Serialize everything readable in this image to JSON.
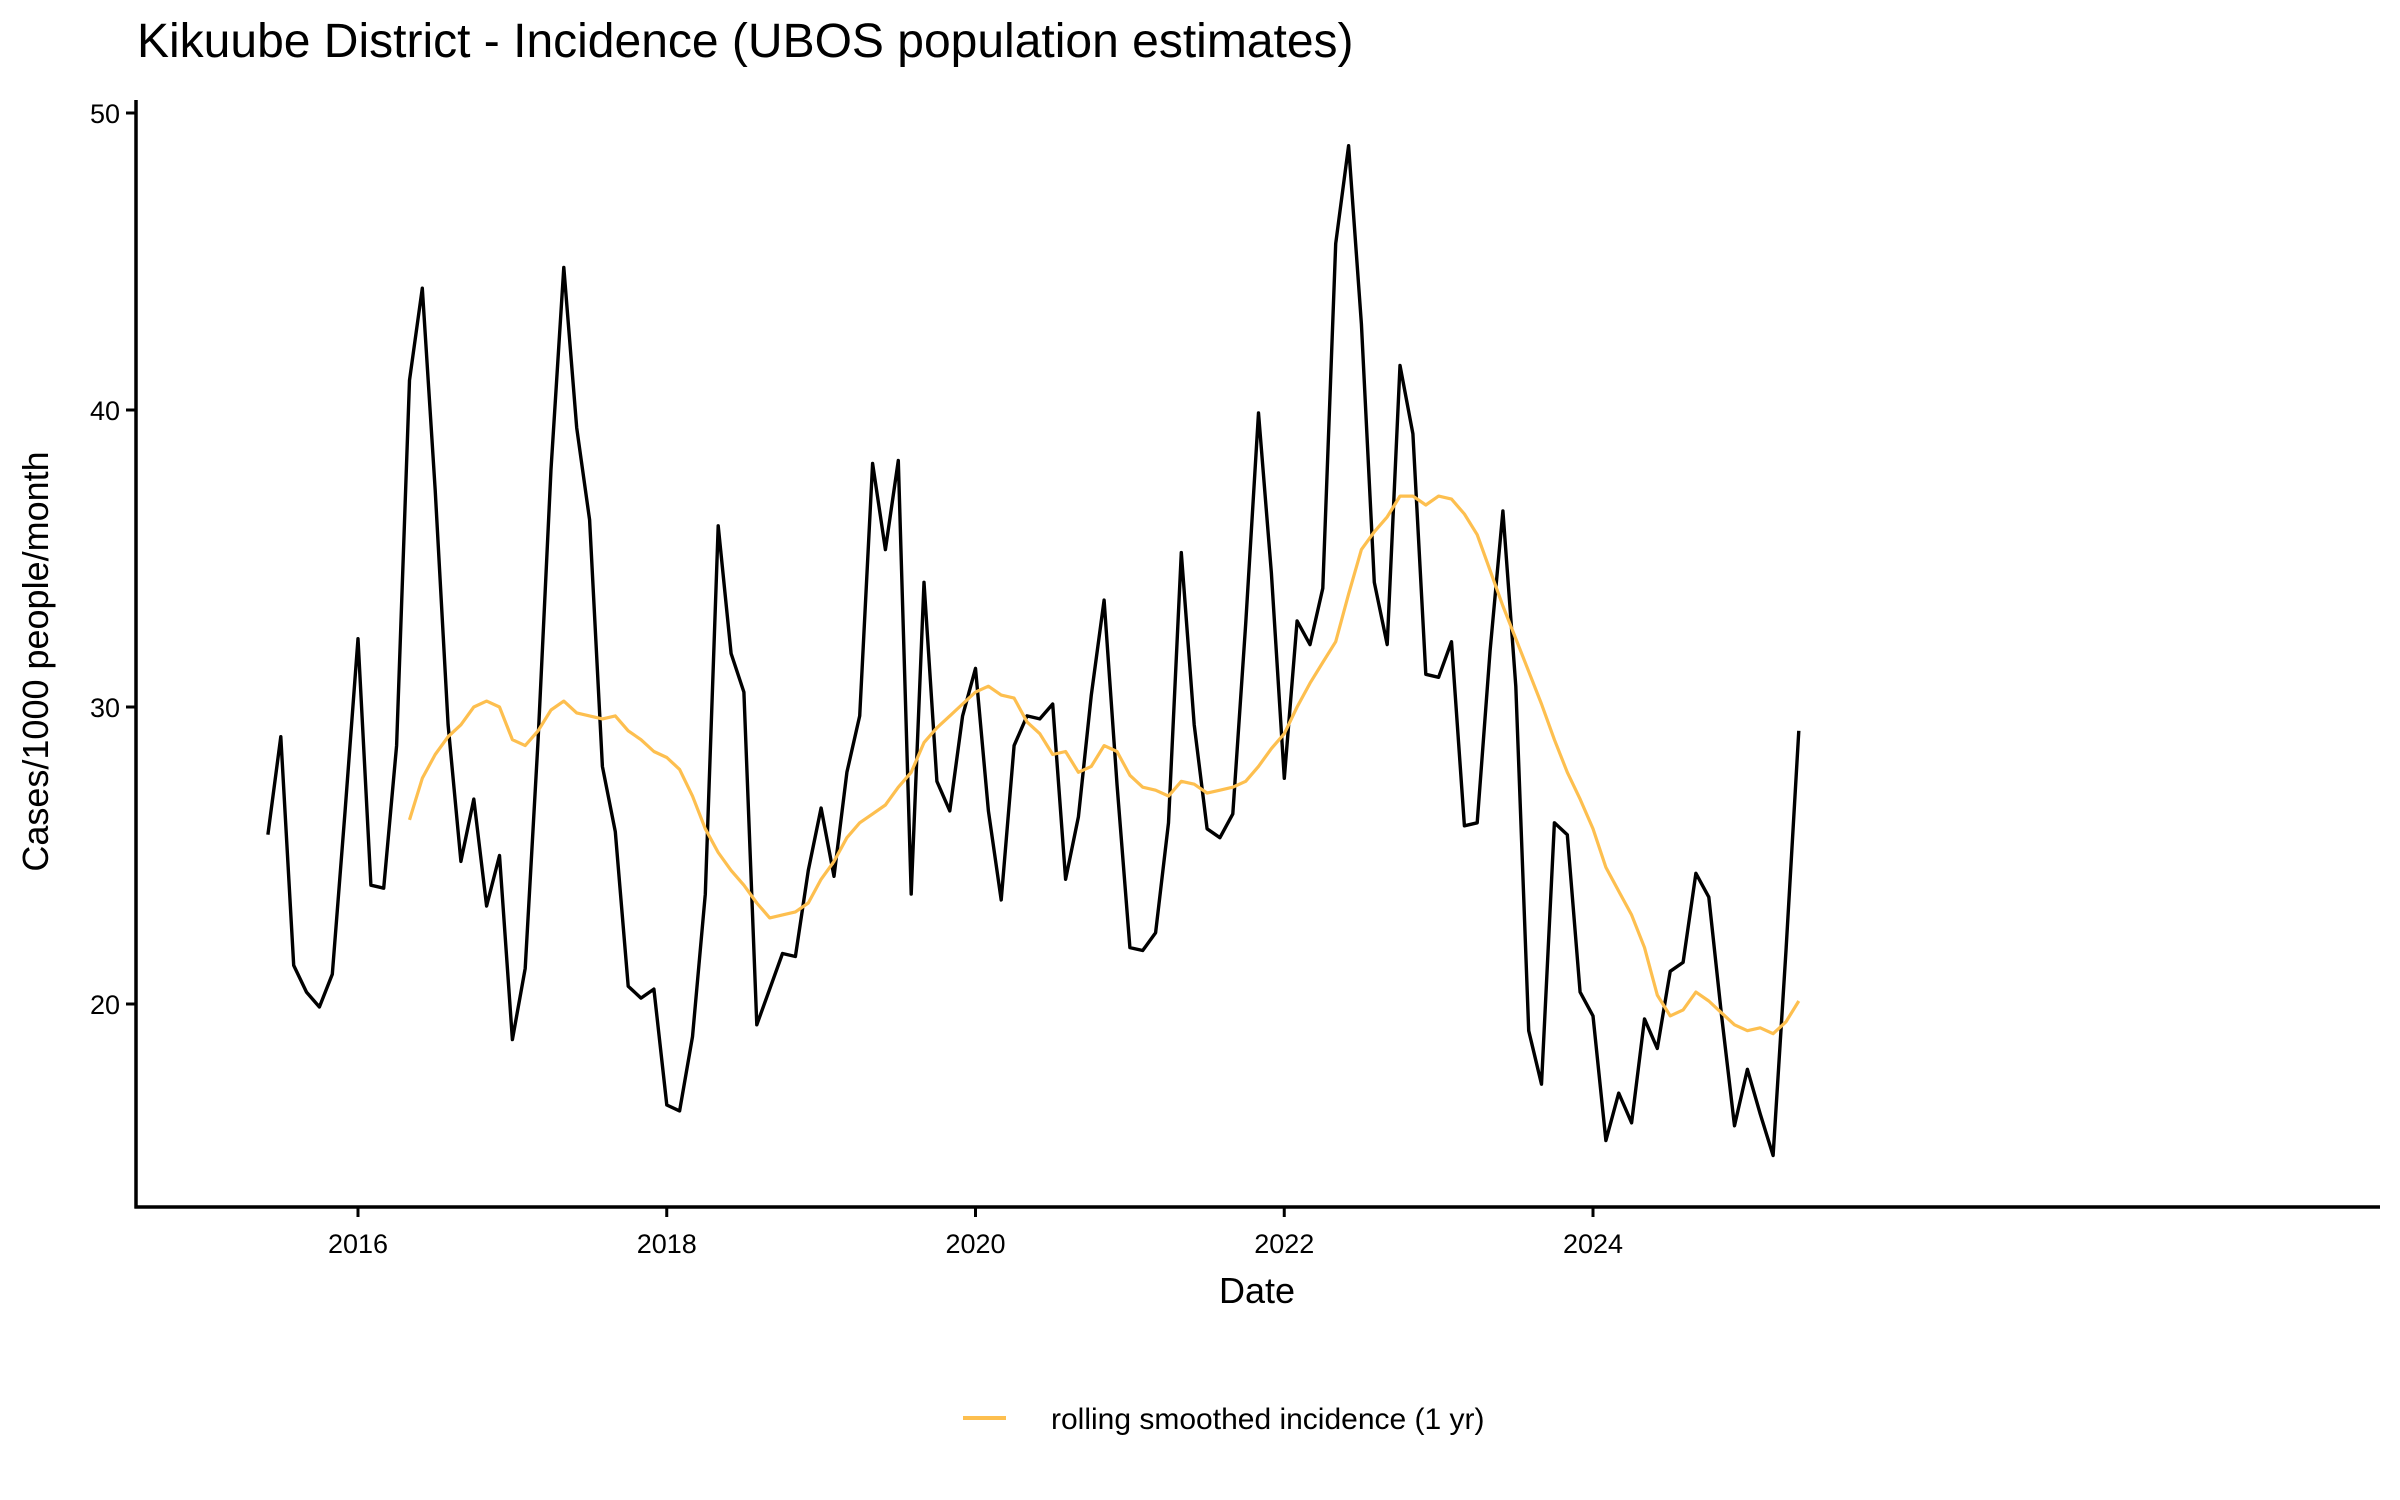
{
  "chart_data": {
    "type": "line",
    "title": "Kikuube District - Incidence (UBOS population estimates)",
    "xlabel": "Date",
    "ylabel": "Cases/1000 people/month",
    "xlim": [
      "2014-12",
      "2025-12"
    ],
    "ylim": [
      13.0,
      50.5
    ],
    "x_ticks": [
      "2016",
      "2018",
      "2020",
      "2022",
      "2024"
    ],
    "y_ticks": [
      20,
      30,
      40,
      50
    ],
    "grid": false,
    "legend": {
      "position": "bottom",
      "entries": [
        "rolling smoothed incidence (1 yr)"
      ]
    },
    "colors": {
      "incidence": "#000000",
      "rolling": "#FDBF4F"
    },
    "series": [
      {
        "name": "incidence",
        "in_legend": false,
        "start": "2015-06",
        "frequency": "monthly",
        "values": [
          25.7,
          29.0,
          21.3,
          20.4,
          19.9,
          21.0,
          26.5,
          32.3,
          24.0,
          23.9,
          28.7,
          41.0,
          44.1,
          37.3,
          29.4,
          24.8,
          26.9,
          23.3,
          25.0,
          18.8,
          21.2,
          28.9,
          38.0,
          44.8,
          39.4,
          36.3,
          28.0,
          25.8,
          20.6,
          20.2,
          20.5,
          16.6,
          16.4,
          18.9,
          23.7,
          36.1,
          31.8,
          30.5,
          19.3,
          20.5,
          21.7,
          21.6,
          24.5,
          26.6,
          24.3,
          27.8,
          29.7,
          38.2,
          35.3,
          38.3,
          23.7,
          34.2,
          27.5,
          26.5,
          29.7,
          31.3,
          26.5,
          23.5,
          28.7,
          29.7,
          29.6,
          30.1,
          24.2,
          26.3,
          30.4,
          33.6,
          27.4,
          21.9,
          21.8,
          22.4,
          26.1,
          35.2,
          29.4,
          25.9,
          25.6,
          26.4,
          32.8,
          39.9,
          34.5,
          27.6,
          32.9,
          32.1,
          34.0,
          45.6,
          48.9,
          42.9,
          34.2,
          32.1,
          41.5,
          39.2,
          31.1,
          31.0,
          32.2,
          26.0,
          26.1,
          31.9,
          36.6,
          30.7,
          19.1,
          17.3,
          26.1,
          25.7,
          20.4,
          19.6,
          15.4,
          17.0,
          16.0,
          19.5,
          18.5,
          21.1,
          21.4,
          24.4,
          23.6,
          19.6,
          15.9,
          17.8,
          16.3,
          14.9,
          21.8,
          29.2
        ]
      },
      {
        "name": "rolling smoothed incidence (1 yr)",
        "in_legend": true,
        "start": "2016-05",
        "frequency": "monthly",
        "values": [
          26.2,
          27.6,
          28.4,
          29.0,
          29.4,
          30.0,
          30.2,
          30.0,
          28.9,
          28.7,
          29.2,
          29.9,
          30.2,
          29.8,
          29.7,
          29.6,
          29.7,
          29.2,
          28.9,
          28.5,
          28.3,
          27.9,
          27.0,
          25.9,
          25.1,
          24.5,
          24.0,
          23.4,
          22.9,
          23.0,
          23.1,
          23.4,
          24.2,
          24.8,
          25.6,
          26.1,
          26.4,
          26.7,
          27.3,
          27.8,
          28.8,
          29.3,
          29.7,
          30.1,
          30.5,
          30.7,
          30.4,
          30.3,
          29.5,
          29.1,
          28.4,
          28.5,
          27.8,
          28.0,
          28.7,
          28.5,
          27.7,
          27.3,
          27.2,
          27.0,
          27.5,
          27.4,
          27.1,
          27.2,
          27.3,
          27.5,
          28.0,
          28.6,
          29.1,
          30.0,
          30.8,
          31.5,
          32.2,
          33.8,
          35.3,
          35.9,
          36.4,
          37.1,
          37.1,
          36.8,
          37.1,
          37.0,
          36.5,
          35.8,
          34.6,
          33.4,
          32.3,
          31.2,
          30.1,
          28.9,
          27.8,
          26.9,
          25.9,
          24.6,
          23.8,
          23.0,
          21.9,
          20.3,
          19.6,
          19.8,
          20.4,
          20.1,
          19.7,
          19.3,
          19.1,
          19.2,
          19.0,
          19.4,
          20.1
        ]
      }
    ]
  }
}
